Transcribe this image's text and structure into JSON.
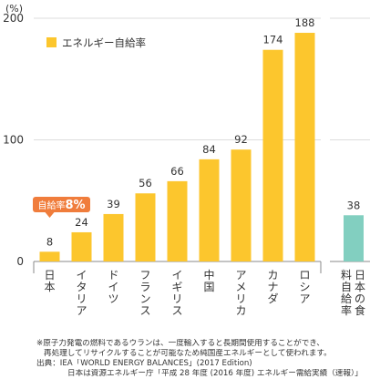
{
  "chart_data": {
    "type": "bar",
    "unit": "(%)",
    "categories": [
      "日本",
      "イタリア",
      "ドイツ",
      "フランス",
      "イギリス",
      "中国",
      "アメリカ",
      "カナダ",
      "ロシア"
    ],
    "values": [
      8,
      24,
      39,
      56,
      66,
      84,
      92,
      174,
      188
    ],
    "extra": {
      "category": "日本の食料自給率",
      "value": 38
    },
    "legend": "エネルギー自給率",
    "callout": {
      "prefix": "自給率",
      "value": "8%"
    },
    "y_ticks": [
      "0",
      "100",
      "200"
    ],
    "ylim": [
      0,
      200
    ],
    "colors": {
      "bar": "#fcc62d",
      "extra_bar": "#82cfc0",
      "callout": "#f07d3c",
      "grid": "#dddddd",
      "axis": "#888888"
    }
  },
  "notes": {
    "line1": "※原子力発電の燃料であるウランは、一度輸入すると長期間使用することができ、",
    "line2": "再処理してリサイクルすることが可能なため純国産エネルギーとして使われます。",
    "line3": "出典：IEA「WORLD ENERGY BALANCES」(2017 Edition)",
    "line4": "日本は資源エネルギー庁「平成 28 年度 (2016 年度) エネルギー需給実績（速報）」"
  }
}
